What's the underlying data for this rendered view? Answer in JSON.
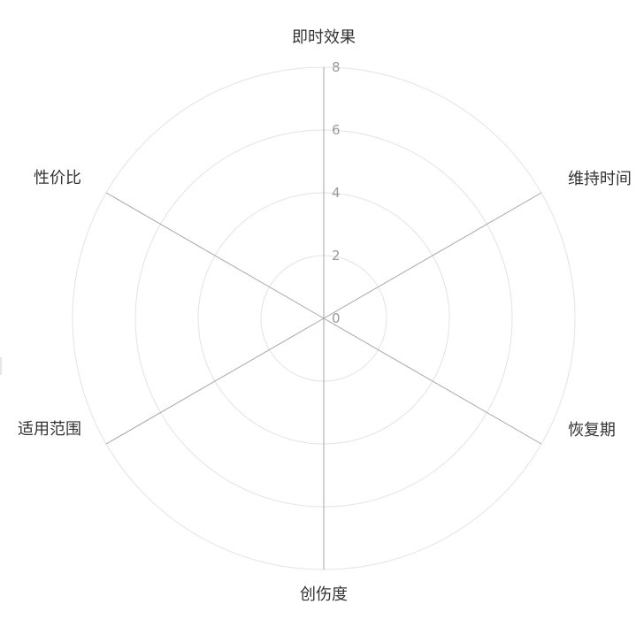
{
  "chart_data": {
    "type": "radar",
    "title": "",
    "axes": [
      {
        "label": "即时效果"
      },
      {
        "label": "维持时间"
      },
      {
        "label": "恢复期"
      },
      {
        "label": "创伤度"
      },
      {
        "label": "适用范围"
      },
      {
        "label": "性价比"
      }
    ],
    "rlim": [
      0,
      8
    ],
    "ticks": [
      "0",
      "2",
      "4",
      "6",
      "8"
    ],
    "grid": true,
    "series": []
  }
}
